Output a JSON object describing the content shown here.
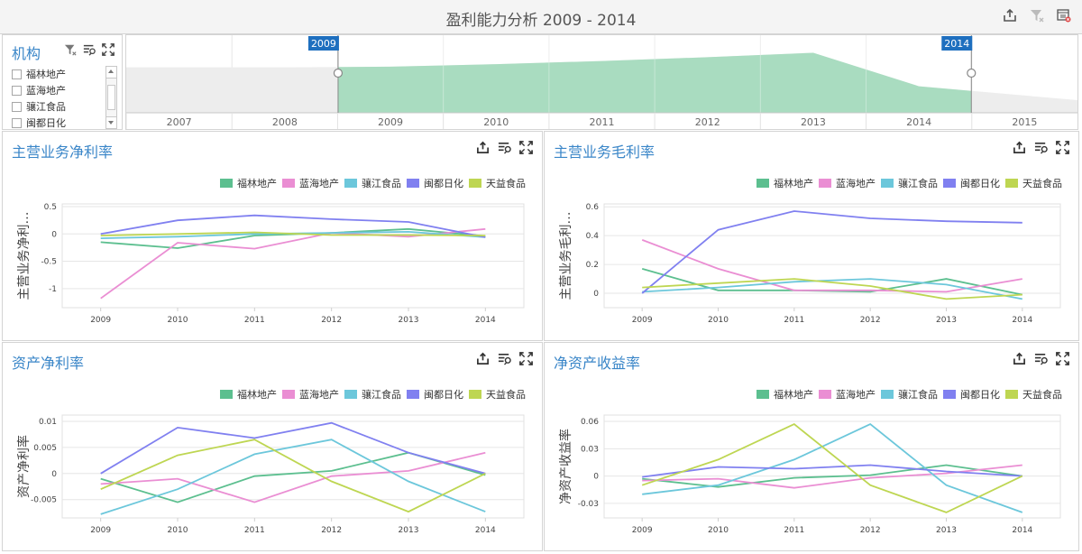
{
  "header": {
    "title": "盈利能力分析  2009 - 2014"
  },
  "icons": {
    "export": "export-icon",
    "clear_filter": "clear-filter-icon",
    "close_dashboard": "close-dashboard-icon",
    "multiselect": "multiselect-icon",
    "maximize": "maximize-icon"
  },
  "filter": {
    "title": "机构",
    "items": [
      "福林地产",
      "蓝海地产",
      "骧江食品",
      "闽都日化"
    ]
  },
  "range_selector": {
    "years": [
      "2007",
      "2008",
      "2009",
      "2010",
      "2011",
      "2012",
      "2013",
      "2014",
      "2015"
    ],
    "selected_start": "2009",
    "selected_end": "2014",
    "area_levels": [
      0.72,
      0.72,
      0.73,
      0.77,
      0.82,
      0.88,
      0.95,
      0.42,
      0.2
    ],
    "fill_color": "#a9dcc0"
  },
  "legend": [
    "福林地产",
    "蓝海地产",
    "骧江食品",
    "闽都日化",
    "天益食品"
  ],
  "series_colors": [
    "#5cbf8f",
    "#ea8ed3",
    "#6cc7db",
    "#8080f0",
    "#bed652"
  ],
  "charts": [
    {
      "id": "net-margin",
      "title": "主营业务净利率",
      "ytitle": "主营业务净利…",
      "chart_data": {
        "type": "line",
        "x": [
          "2009",
          "2010",
          "2011",
          "2012",
          "2013",
          "2014"
        ],
        "ylim": [
          -1.35,
          0.55
        ],
        "yticks": [
          0.5,
          0,
          -0.5,
          -1
        ],
        "ytick_labels": [
          "0.5",
          "0",
          "-0.5",
          "-1"
        ],
        "series": [
          {
            "name": "福林地产",
            "values": [
              -0.15,
              -0.26,
              -0.03,
              0.02,
              0.09,
              -0.04
            ]
          },
          {
            "name": "蓝海地产",
            "values": [
              -1.18,
              -0.16,
              -0.27,
              0.02,
              -0.05,
              0.09
            ]
          },
          {
            "name": "骧江食品",
            "values": [
              -0.08,
              -0.05,
              0.0,
              0.02,
              0.04,
              -0.06
            ]
          },
          {
            "name": "闽都日化",
            "values": [
              0.0,
              0.25,
              0.34,
              0.27,
              0.22,
              -0.06
            ]
          },
          {
            "name": "天益食品",
            "values": [
              -0.03,
              0.0,
              0.03,
              -0.02,
              -0.02,
              -0.03
            ]
          }
        ]
      }
    },
    {
      "id": "gross-margin",
      "title": "主营业务毛利率",
      "ytitle": "主营业务毛利…",
      "chart_data": {
        "type": "line",
        "x": [
          "2009",
          "2010",
          "2011",
          "2012",
          "2013",
          "2014"
        ],
        "ylim": [
          -0.1,
          0.62
        ],
        "yticks": [
          0.6,
          0.4,
          0.2,
          0
        ],
        "ytick_labels": [
          "0.6",
          "0.4",
          "0.2",
          "0"
        ],
        "series": [
          {
            "name": "福林地产",
            "values": [
              0.17,
              0.02,
              0.02,
              0.01,
              0.1,
              -0.01
            ]
          },
          {
            "name": "蓝海地产",
            "values": [
              0.37,
              0.17,
              0.02,
              0.02,
              0.01,
              0.1
            ]
          },
          {
            "name": "骧江食品",
            "values": [
              0.01,
              0.04,
              0.08,
              0.1,
              0.06,
              -0.04
            ]
          },
          {
            "name": "闽都日化",
            "values": [
              0.0,
              0.44,
              0.57,
              0.52,
              0.5,
              0.49
            ]
          },
          {
            "name": "天益食品",
            "values": [
              0.04,
              0.07,
              0.1,
              0.05,
              -0.04,
              -0.01
            ]
          }
        ]
      }
    },
    {
      "id": "roa",
      "title": "资产净利率",
      "ytitle": "资产净利率",
      "chart_data": {
        "type": "line",
        "x": [
          "2009",
          "2010",
          "2011",
          "2012",
          "2013",
          "2014"
        ],
        "ylim": [
          -0.0085,
          0.0112
        ],
        "yticks": [
          0.01,
          0.005,
          0,
          -0.005
        ],
        "ytick_labels": [
          "0.01",
          "0.005",
          "0",
          "-0.005"
        ],
        "series": [
          {
            "name": "福林地产",
            "values": [
              -0.001,
              -0.0055,
              -0.0005,
              0.0005,
              0.004,
              -0.0003
            ]
          },
          {
            "name": "蓝海地产",
            "values": [
              -0.002,
              -0.001,
              -0.0055,
              -0.0005,
              0.0005,
              0.004
            ]
          },
          {
            "name": "骧江食品",
            "values": [
              -0.0078,
              -0.003,
              0.0037,
              0.0065,
              -0.0015,
              -0.0073
            ]
          },
          {
            "name": "闽都日化",
            "values": [
              0.0,
              0.0088,
              0.0068,
              0.0097,
              0.004,
              0.0
            ]
          },
          {
            "name": "天益食品",
            "values": [
              -0.003,
              0.0035,
              0.0065,
              -0.0015,
              -0.0073,
              0.0
            ]
          }
        ]
      }
    },
    {
      "id": "roe",
      "title": "净资产收益率",
      "ytitle": "净资产收益率",
      "chart_data": {
        "type": "line",
        "x": [
          "2009",
          "2010",
          "2011",
          "2012",
          "2013",
          "2014"
        ],
        "ylim": [
          -0.046,
          0.067
        ],
        "yticks": [
          0.06,
          0.03,
          0,
          -0.03
        ],
        "ytick_labels": [
          "0.06",
          "0.03",
          "0",
          "-0.03"
        ],
        "series": [
          {
            "name": "福林地产",
            "values": [
              -0.003,
              -0.012,
              -0.002,
              0.001,
              0.012,
              0.0
            ]
          },
          {
            "name": "蓝海地产",
            "values": [
              -0.005,
              -0.003,
              -0.013,
              -0.002,
              0.003,
              0.012
            ]
          },
          {
            "name": "骧江食品",
            "values": [
              -0.02,
              -0.01,
              0.018,
              0.057,
              -0.01,
              -0.04
            ]
          },
          {
            "name": "闽都日化",
            "values": [
              -0.001,
              0.01,
              0.008,
              0.012,
              0.005,
              0.0
            ]
          },
          {
            "name": "天益食品",
            "values": [
              -0.01,
              0.018,
              0.057,
              -0.01,
              -0.04,
              0.0
            ]
          }
        ]
      }
    }
  ]
}
